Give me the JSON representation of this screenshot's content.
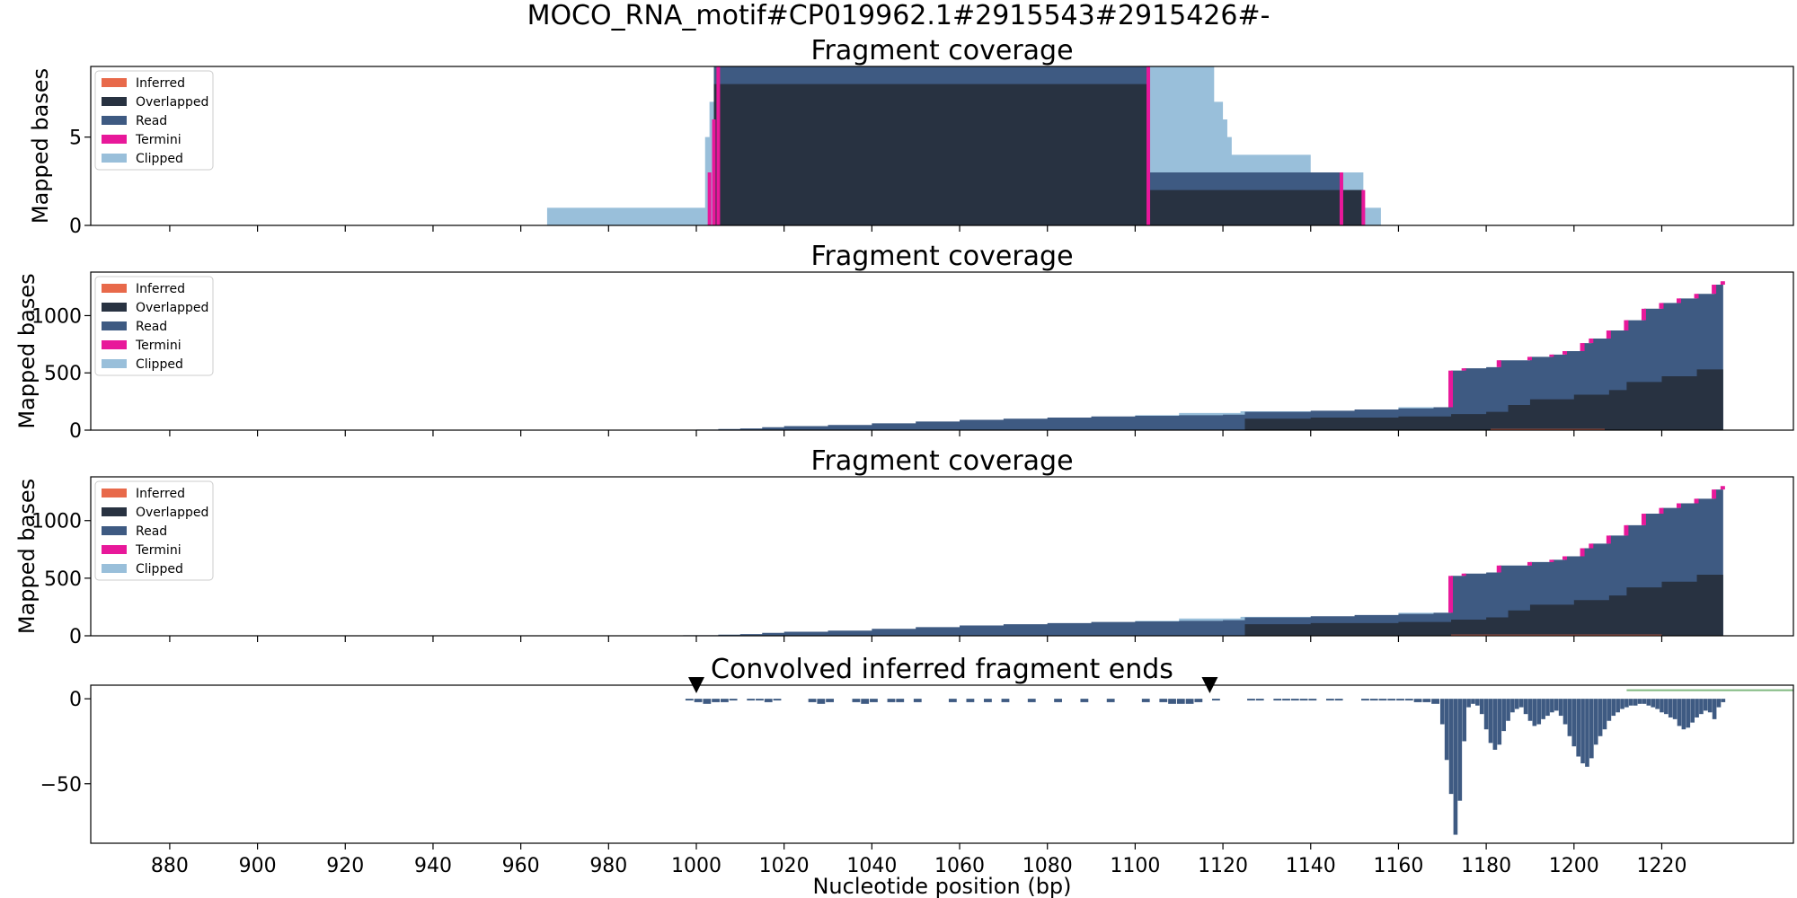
{
  "figure": {
    "suptitle": "MOCO_RNA_motif#CP019962.1#2915543#2915426#-"
  },
  "colors": {
    "inferred": "#E8694A",
    "overlapped": "#283241",
    "read": "#3E5A82",
    "termini": "#E8189A",
    "clipped": "#99BFDA",
    "convolved": "#3E5A82",
    "convolved_tail": "#7FB97F",
    "marker": "#000000"
  },
  "chart_data": [
    {
      "type": "area",
      "title": "Fragment coverage",
      "ylabel": "Mapped bases",
      "xlim": [
        862,
        1250
      ],
      "ylim": [
        0,
        9
      ],
      "yticks": [
        0,
        5
      ],
      "legend_loc": "top-left",
      "legend": [
        "Inferred",
        "Overlapped",
        "Read",
        "Termini",
        "Clipped"
      ],
      "series": {
        "clipped": [
          [
            966,
            1
          ],
          [
            1002,
            5
          ],
          [
            1003,
            7
          ],
          [
            1004,
            9
          ],
          [
            1104,
            9
          ],
          [
            1117,
            9
          ],
          [
            1118,
            7
          ],
          [
            1120,
            6
          ],
          [
            1121,
            5
          ],
          [
            1122,
            4
          ],
          [
            1124,
            4
          ],
          [
            1131,
            4
          ],
          [
            1140,
            3
          ],
          [
            1152,
            1
          ],
          [
            1156,
            0
          ]
        ],
        "read": [
          [
            1004,
            9
          ],
          [
            1103,
            3
          ],
          [
            1147,
            2
          ],
          [
            1152,
            0
          ]
        ],
        "overlapped": [
          [
            1004,
            8
          ],
          [
            1103,
            2
          ],
          [
            1152,
            0
          ]
        ],
        "termini": [
          [
            1003,
            3
          ],
          [
            1004,
            6
          ],
          [
            1005,
            9
          ],
          [
            1103,
            9
          ],
          [
            1147,
            3
          ],
          [
            1152,
            2
          ]
        ],
        "inferred": []
      }
    },
    {
      "type": "area",
      "title": "Fragment coverage",
      "ylabel": "Mapped bases",
      "xlim": [
        862,
        1250
      ],
      "ylim": [
        0,
        1380
      ],
      "yticks": [
        0,
        500,
        1000
      ],
      "legend_loc": "top-left",
      "legend": [
        "Inferred",
        "Overlapped",
        "Read",
        "Termini",
        "Clipped"
      ],
      "series": {
        "read": [
          [
            1000,
            5
          ],
          [
            1005,
            10
          ],
          [
            1010,
            15
          ],
          [
            1015,
            25
          ],
          [
            1020,
            35
          ],
          [
            1030,
            45
          ],
          [
            1040,
            60
          ],
          [
            1050,
            75
          ],
          [
            1060,
            90
          ],
          [
            1070,
            100
          ],
          [
            1080,
            110
          ],
          [
            1090,
            120
          ],
          [
            1100,
            125
          ],
          [
            1110,
            130
          ],
          [
            1120,
            135
          ],
          [
            1125,
            160
          ],
          [
            1140,
            170
          ],
          [
            1150,
            180
          ],
          [
            1160,
            190
          ],
          [
            1168,
            200
          ],
          [
            1172,
            520
          ],
          [
            1175,
            540
          ],
          [
            1180,
            550
          ],
          [
            1183,
            610
          ],
          [
            1190,
            640
          ],
          [
            1195,
            660
          ],
          [
            1198,
            690
          ],
          [
            1202,
            760
          ],
          [
            1204,
            800
          ],
          [
            1208,
            870
          ],
          [
            1212,
            960
          ],
          [
            1216,
            1060
          ],
          [
            1220,
            1110
          ],
          [
            1224,
            1150
          ],
          [
            1228,
            1190
          ],
          [
            1232,
            1270
          ],
          [
            1234,
            1300
          ]
        ],
        "overlapped": [
          [
            1000,
            0
          ],
          [
            1125,
            100
          ],
          [
            1140,
            110
          ],
          [
            1160,
            120
          ],
          [
            1172,
            140
          ],
          [
            1180,
            160
          ],
          [
            1185,
            220
          ],
          [
            1190,
            270
          ],
          [
            1200,
            310
          ],
          [
            1208,
            350
          ],
          [
            1212,
            420
          ],
          [
            1220,
            470
          ],
          [
            1228,
            530
          ],
          [
            1234,
            570
          ]
        ],
        "clipped": [
          [
            1060,
            30
          ],
          [
            1080,
            80
          ],
          [
            1100,
            130
          ],
          [
            1110,
            150
          ],
          [
            1124,
            165
          ],
          [
            1160,
            200
          ],
          [
            1234,
            1310
          ]
        ],
        "inferred": [
          [
            1181,
            1207,
            10
          ]
        ]
      }
    },
    {
      "type": "area",
      "title": "Fragment coverage",
      "ylabel": "Mapped bases",
      "xlim": [
        862,
        1250
      ],
      "ylim": [
        0,
        1380
      ],
      "yticks": [
        0,
        500,
        1000
      ],
      "legend_loc": "top-left",
      "legend": [
        "Inferred",
        "Overlapped",
        "Read",
        "Termini",
        "Clipped"
      ],
      "series": {
        "read": [
          [
            997,
            5
          ],
          [
            1005,
            10
          ],
          [
            1010,
            15
          ],
          [
            1015,
            25
          ],
          [
            1020,
            35
          ],
          [
            1030,
            45
          ],
          [
            1040,
            60
          ],
          [
            1050,
            75
          ],
          [
            1060,
            90
          ],
          [
            1070,
            100
          ],
          [
            1080,
            110
          ],
          [
            1090,
            120
          ],
          [
            1100,
            125
          ],
          [
            1110,
            130
          ],
          [
            1120,
            135
          ],
          [
            1125,
            160
          ],
          [
            1140,
            170
          ],
          [
            1150,
            180
          ],
          [
            1160,
            190
          ],
          [
            1168,
            200
          ],
          [
            1172,
            520
          ],
          [
            1175,
            540
          ],
          [
            1180,
            550
          ],
          [
            1183,
            610
          ],
          [
            1190,
            640
          ],
          [
            1195,
            660
          ],
          [
            1198,
            690
          ],
          [
            1202,
            760
          ],
          [
            1204,
            800
          ],
          [
            1208,
            870
          ],
          [
            1212,
            960
          ],
          [
            1216,
            1060
          ],
          [
            1220,
            1110
          ],
          [
            1224,
            1150
          ],
          [
            1228,
            1190
          ],
          [
            1232,
            1270
          ],
          [
            1234,
            1300
          ]
        ],
        "overlapped": [
          [
            997,
            0
          ],
          [
            1125,
            100
          ],
          [
            1140,
            110
          ],
          [
            1160,
            120
          ],
          [
            1172,
            140
          ],
          [
            1180,
            160
          ],
          [
            1185,
            220
          ],
          [
            1190,
            270
          ],
          [
            1200,
            310
          ],
          [
            1208,
            350
          ],
          [
            1212,
            420
          ],
          [
            1220,
            470
          ],
          [
            1228,
            530
          ],
          [
            1234,
            570
          ]
        ],
        "clipped": [
          [
            1060,
            30
          ],
          [
            1080,
            80
          ],
          [
            1100,
            130
          ],
          [
            1110,
            150
          ],
          [
            1124,
            165
          ],
          [
            1160,
            200
          ],
          [
            1234,
            1310
          ]
        ],
        "inferred": [
          [
            1172,
            1220,
            10
          ]
        ]
      }
    },
    {
      "type": "bar",
      "title": "Convolved inferred fragment ends",
      "ylabel": "",
      "xlabel": "Nucleotide position (bp)",
      "xlim": [
        862,
        1250
      ],
      "ylim": [
        -85,
        8
      ],
      "yticks": [
        0,
        -50
      ],
      "xticks": [
        880,
        900,
        920,
        940,
        960,
        980,
        1000,
        1020,
        1040,
        1060,
        1080,
        1100,
        1120,
        1140,
        1160,
        1180,
        1200,
        1220
      ],
      "markers_x": [
        1000,
        1117
      ],
      "tail_line": [
        [
          1212,
          1250,
          4
        ]
      ],
      "values": [
        [
          998,
          -1
        ],
        [
          1000,
          -2
        ],
        [
          1002,
          -3
        ],
        [
          1004,
          -2
        ],
        [
          1006,
          -2
        ],
        [
          1008,
          -1
        ],
        [
          1012,
          -1
        ],
        [
          1014,
          -1
        ],
        [
          1016,
          -2
        ],
        [
          1018,
          -1
        ],
        [
          1026,
          -2
        ],
        [
          1028,
          -3
        ],
        [
          1030,
          -2
        ],
        [
          1036,
          -2
        ],
        [
          1038,
          -3
        ],
        [
          1040,
          -2
        ],
        [
          1044,
          -2
        ],
        [
          1046,
          -2
        ],
        [
          1050,
          -2
        ],
        [
          1058,
          -2
        ],
        [
          1062,
          -2
        ],
        [
          1066,
          -2
        ],
        [
          1070,
          -2
        ],
        [
          1076,
          -2
        ],
        [
          1082,
          -2
        ],
        [
          1088,
          -2
        ],
        [
          1094,
          -2
        ],
        [
          1102,
          -2
        ],
        [
          1106,
          -2
        ],
        [
          1108,
          -3
        ],
        [
          1110,
          -3
        ],
        [
          1112,
          -3
        ],
        [
          1114,
          -2
        ],
        [
          1118,
          -1
        ],
        [
          1126,
          -1
        ],
        [
          1128,
          -1
        ],
        [
          1132,
          -1
        ],
        [
          1134,
          -1
        ],
        [
          1136,
          -1
        ],
        [
          1138,
          -1
        ],
        [
          1140,
          -1
        ],
        [
          1144,
          -1
        ],
        [
          1146,
          -1
        ],
        [
          1152,
          -1
        ],
        [
          1154,
          -1
        ],
        [
          1156,
          -1
        ],
        [
          1158,
          -1
        ],
        [
          1160,
          -1
        ],
        [
          1162,
          -1
        ],
        [
          1164,
          -2
        ],
        [
          1166,
          -2
        ],
        [
          1168,
          -3
        ],
        [
          1170,
          -15
        ],
        [
          1171,
          -36
        ],
        [
          1172,
          -56
        ],
        [
          1173,
          -80
        ],
        [
          1174,
          -60
        ],
        [
          1175,
          -25
        ],
        [
          1176,
          -5
        ],
        [
          1177,
          -3
        ],
        [
          1178,
          -4
        ],
        [
          1179,
          -9
        ],
        [
          1180,
          -18
        ],
        [
          1181,
          -26
        ],
        [
          1182,
          -30
        ],
        [
          1183,
          -27
        ],
        [
          1184,
          -19
        ],
        [
          1185,
          -13
        ],
        [
          1186,
          -8
        ],
        [
          1187,
          -6
        ],
        [
          1188,
          -5
        ],
        [
          1189,
          -9
        ],
        [
          1190,
          -13
        ],
        [
          1191,
          -16
        ],
        [
          1192,
          -15
        ],
        [
          1193,
          -12
        ],
        [
          1194,
          -10
        ],
        [
          1195,
          -8
        ],
        [
          1196,
          -7
        ],
        [
          1197,
          -10
        ],
        [
          1198,
          -15
        ],
        [
          1199,
          -22
        ],
        [
          1200,
          -28
        ],
        [
          1201,
          -34
        ],
        [
          1202,
          -38
        ],
        [
          1203,
          -40
        ],
        [
          1204,
          -35
        ],
        [
          1205,
          -27
        ],
        [
          1206,
          -22
        ],
        [
          1207,
          -18
        ],
        [
          1208,
          -13
        ],
        [
          1209,
          -10
        ],
        [
          1210,
          -8
        ],
        [
          1211,
          -6
        ],
        [
          1212,
          -5
        ],
        [
          1213,
          -4
        ],
        [
          1214,
          -4
        ],
        [
          1215,
          -3
        ],
        [
          1216,
          -3
        ],
        [
          1217,
          -4
        ],
        [
          1218,
          -5
        ],
        [
          1219,
          -6
        ],
        [
          1220,
          -8
        ],
        [
          1221,
          -9
        ],
        [
          1222,
          -11
        ],
        [
          1223,
          -12
        ],
        [
          1224,
          -16
        ],
        [
          1225,
          -18
        ],
        [
          1226,
          -17
        ],
        [
          1227,
          -14
        ],
        [
          1228,
          -11
        ],
        [
          1229,
          -9
        ],
        [
          1230,
          -7
        ],
        [
          1231,
          -8
        ],
        [
          1232,
          -12
        ],
        [
          1233,
          -5
        ],
        [
          1234,
          -2
        ]
      ]
    }
  ]
}
